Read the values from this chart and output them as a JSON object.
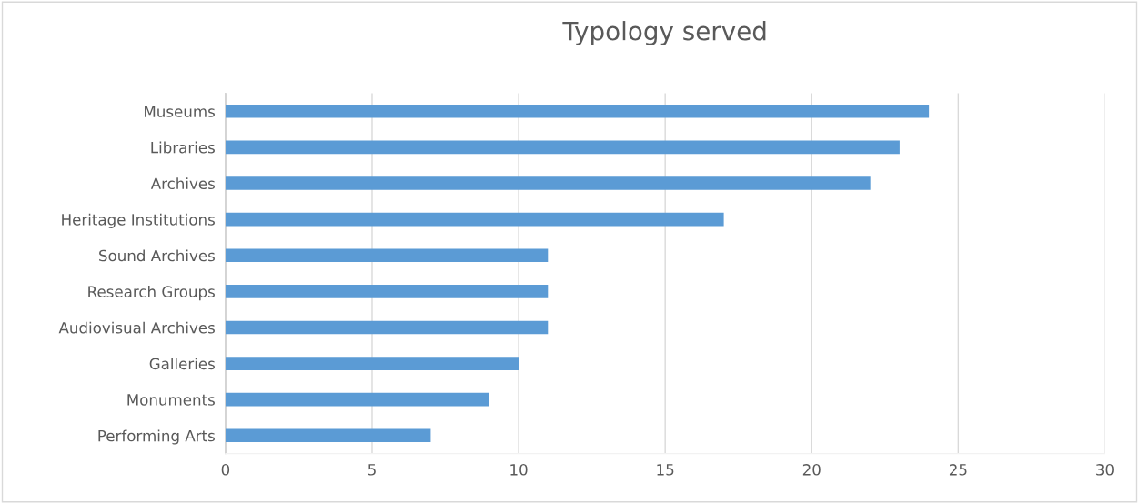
{
  "chart_data": {
    "type": "bar",
    "orientation": "horizontal",
    "title": "Typology served",
    "categories": [
      "Museums",
      "Libraries",
      "Archives",
      "Heritage Institutions",
      "Sound Archives",
      "Research Groups",
      "Audiovisual Archives",
      "Galleries",
      "Monuments",
      "Performing Arts"
    ],
    "values": [
      24,
      23,
      22,
      17,
      11,
      11,
      11,
      10,
      9,
      7
    ],
    "color": "#5b9bd5",
    "xlim": [
      0,
      30
    ],
    "xticks": [
      0,
      5,
      10,
      15,
      20,
      25,
      30
    ],
    "grid": "x"
  }
}
